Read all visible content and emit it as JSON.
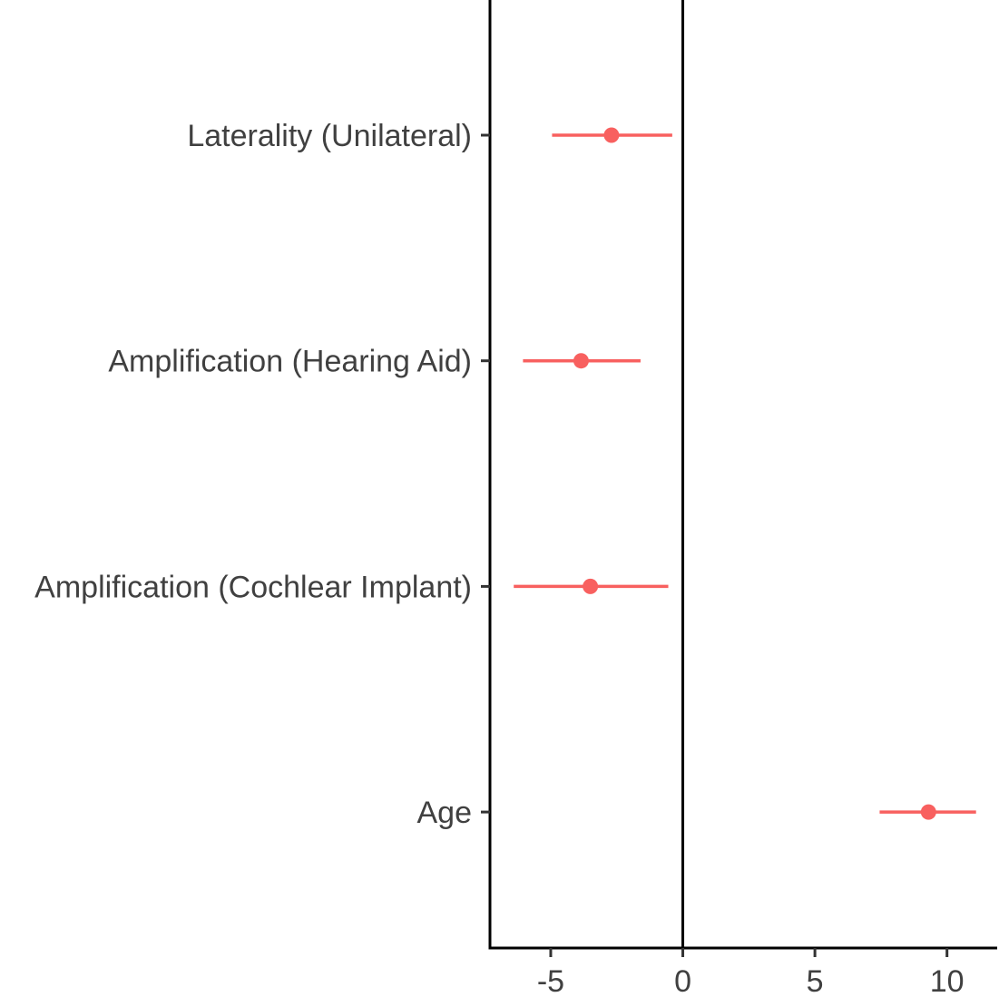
{
  "chart_data": {
    "type": "scatter",
    "title": "",
    "xlabel": "",
    "ylabel": "",
    "xlim": [
      -7.3,
      11.9
    ],
    "x_ticks": [
      -5,
      0,
      5,
      10
    ],
    "x_tick_labels": [
      "-5",
      "0",
      "5",
      "10"
    ],
    "reference_line_x": 0,
    "grid": false,
    "legend": "none",
    "point_color": "#F8605F",
    "categories": [
      "Laterality (Unilateral)",
      "Amplification (Hearing Aid)",
      "Amplification (Cochlear Implant)",
      "Age"
    ],
    "series": [
      {
        "estimates": [
          -2.7,
          -3.85,
          -3.5,
          9.3
        ],
        "lower": [
          -4.95,
          -6.05,
          -6.4,
          7.45
        ],
        "upper": [
          -0.4,
          -1.6,
          -0.55,
          11.1
        ]
      }
    ]
  }
}
